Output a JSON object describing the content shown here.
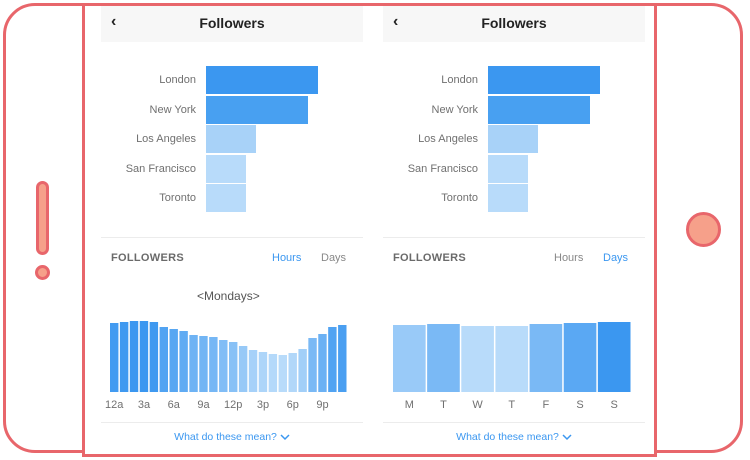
{
  "left_panel": {
    "nav": {
      "back_icon": "chevron-left",
      "title": "Followers"
    },
    "cities": [
      {
        "name": "London",
        "value": 100,
        "color": "#3b97f0"
      },
      {
        "name": "New York",
        "value": 91,
        "color": "#48a0f1"
      },
      {
        "name": "Los Angeles",
        "value": 45,
        "color": "#a8d2f8"
      },
      {
        "name": "San Francisco",
        "value": 36,
        "color": "#b8dbfa"
      },
      {
        "name": "Toronto",
        "value": 36,
        "color": "#b8dbfa"
      }
    ],
    "section_title": "FOLLOWERS",
    "tabs": {
      "hours": "Hours",
      "days": "Days",
      "active": "hours"
    },
    "day_selector": {
      "prev": "<",
      "label": "Mondays",
      "next": ">"
    },
    "footer_link": "What do these mean?",
    "chevron_icon": "chevron-down"
  },
  "right_panel": {
    "nav": {
      "back_icon": "chevron-left",
      "title": "Followers"
    },
    "cities": [
      {
        "name": "London",
        "value": 100,
        "color": "#3b97f0"
      },
      {
        "name": "New York",
        "value": 91,
        "color": "#48a0f1"
      },
      {
        "name": "Los Angeles",
        "value": 45,
        "color": "#a8d2f8"
      },
      {
        "name": "San Francisco",
        "value": 36,
        "color": "#b8dbfa"
      },
      {
        "name": "Toronto",
        "value": 36,
        "color": "#b8dbfa"
      }
    ],
    "section_title": "FOLLOWERS",
    "tabs": {
      "hours": "Hours",
      "days": "Days",
      "active": "days"
    },
    "footer_link": "What do these mean?",
    "chevron_icon": "chevron-down"
  },
  "colors": {
    "accent": "#3b97f0",
    "inactive_tab": "#888888",
    "device_outline": "#e8666b",
    "device_fill": "#f6a08a"
  },
  "chart_data": [
    {
      "type": "bar",
      "title": "",
      "categories": [
        "London",
        "New York",
        "Los Angeles",
        "San Francisco",
        "Toronto"
      ],
      "values": [
        100,
        91,
        45,
        36,
        36
      ],
      "orientation": "horizontal"
    },
    {
      "type": "bar",
      "title": "Mondays",
      "categories": [
        "12a",
        "1a",
        "2a",
        "3a",
        "4a",
        "5a",
        "6a",
        "7a",
        "8a",
        "9a",
        "10a",
        "11a",
        "12p",
        "1p",
        "2p",
        "3p",
        "4p",
        "5p",
        "6p",
        "7p",
        "8p",
        "9p",
        "10p",
        "11p"
      ],
      "tick_labels": [
        "12a",
        "3a",
        "6a",
        "9a",
        "12p",
        "3p",
        "6p",
        "9p"
      ],
      "values": [
        69,
        70,
        71,
        71,
        70,
        65,
        63,
        61,
        57,
        56,
        55,
        52,
        50,
        46,
        42,
        40,
        38,
        37,
        39,
        43,
        54,
        58,
        65,
        67
      ],
      "ylim": [
        0,
        100
      ]
    },
    {
      "type": "bar",
      "title": "",
      "categories": [
        "M",
        "T",
        "W",
        "T",
        "F",
        "S",
        "S"
      ],
      "values": [
        67,
        68,
        66,
        66,
        68,
        69,
        70
      ],
      "ylim": [
        0,
        100
      ]
    }
  ]
}
